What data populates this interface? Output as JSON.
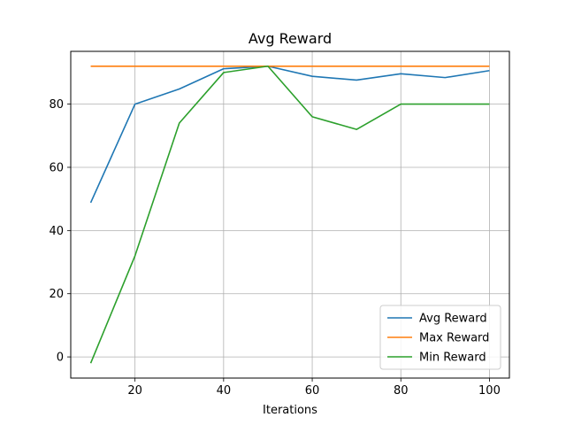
{
  "chart_data": {
    "type": "line",
    "title": "Avg Reward",
    "xlabel": "Iterations",
    "ylabel": "",
    "xlim": [
      5.5,
      104.5
    ],
    "ylim": [
      -6.7,
      96.7
    ],
    "xticks": [
      20,
      40,
      60,
      80,
      100
    ],
    "yticks": [
      0,
      20,
      40,
      60,
      80
    ],
    "grid": true,
    "legend_position": "lower-right",
    "x": [
      10,
      20,
      30,
      40,
      50,
      60,
      70,
      80,
      90,
      100
    ],
    "series": [
      {
        "name": "Avg Reward",
        "color": "#1f77b4",
        "values": [
          48.8,
          80.0,
          84.8,
          91.2,
          92.0,
          88.8,
          87.6,
          89.6,
          88.4,
          90.6
        ]
      },
      {
        "name": "Max Reward",
        "color": "#ff7f0e",
        "values": [
          92,
          92,
          92,
          92,
          92,
          92,
          92,
          92,
          92,
          92
        ]
      },
      {
        "name": "Min Reward",
        "color": "#2ca02c",
        "values": [
          -2,
          32,
          74,
          90,
          92,
          76,
          72,
          80,
          80,
          80
        ]
      }
    ]
  }
}
